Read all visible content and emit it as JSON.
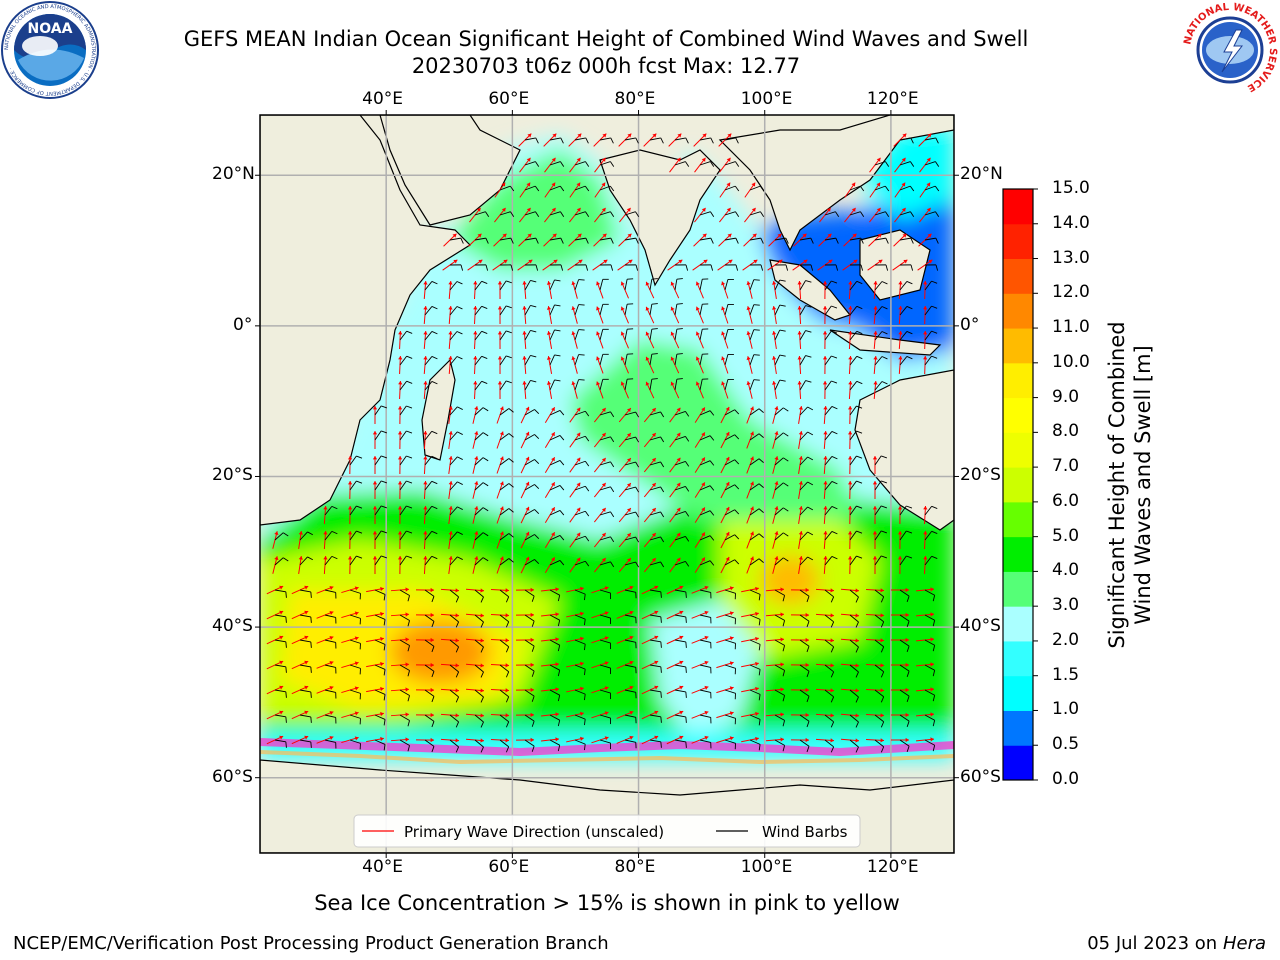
{
  "title": {
    "line1": "GEFS MEAN Indian Ocean Significant Height of Combined Wind Waves and Swell",
    "line2": "20230703 t06z 000h fcst   Max: 12.77"
  },
  "logos": {
    "noaa_text": "NOAA",
    "noaa_ring": "NATIONAL OCEANIC AND ATMOSPHERIC ADMINISTRATION · U.S. DEPARTMENT OF COMMERCE ·",
    "nws_ring": "NATIONAL WEATHER SERVICE"
  },
  "map": {
    "projection": "equidistant-cylindrical",
    "lon_range": [
      20,
      130
    ],
    "lat_range": [
      -70,
      28
    ],
    "lon_ticks": [
      {
        "value": 40,
        "label": "40°E"
      },
      {
        "value": 60,
        "label": "60°E"
      },
      {
        "value": 80,
        "label": "80°E"
      },
      {
        "value": 100,
        "label": "100°E"
      },
      {
        "value": 120,
        "label": "120°E"
      }
    ],
    "lat_ticks": [
      {
        "value": 20,
        "label": "20°N"
      },
      {
        "value": 0,
        "label": "0°"
      },
      {
        "value": -20,
        "label": "20°S"
      },
      {
        "value": -40,
        "label": "40°S"
      },
      {
        "value": -60,
        "label": "60°S"
      }
    ],
    "grid": true,
    "land_color": "#efeedd",
    "ocean_default_color": "#aaffff",
    "legend": {
      "placement": "bottom-center",
      "items": [
        {
          "label": "Primary Wave Direction (unscaled)",
          "color": "#ff0000"
        },
        {
          "label": "Wind Barbs",
          "color": "#000000"
        }
      ]
    }
  },
  "colorbar": {
    "title_line1": "Significant Height of Combined",
    "title_line2": "Wind Waves and Swell [m]",
    "levels": [
      {
        "value": "0.0",
        "color": "#0000ff"
      },
      {
        "value": "0.5",
        "color": "#0077ff"
      },
      {
        "value": "1.0",
        "color": "#00ffff"
      },
      {
        "value": "1.5",
        "color": "#33ffff"
      },
      {
        "value": "2.0",
        "color": "#aaffff"
      },
      {
        "value": "3.0",
        "color": "#55ff77"
      },
      {
        "value": "4.0",
        "color": "#00ee00"
      },
      {
        "value": "5.0",
        "color": "#66ff00"
      },
      {
        "value": "6.0",
        "color": "#ccff00"
      },
      {
        "value": "7.0",
        "color": "#eeff00"
      },
      {
        "value": "8.0",
        "color": "#ffff00"
      },
      {
        "value": "9.0",
        "color": "#ffee00"
      },
      {
        "value": "10.0",
        "color": "#ffbb00"
      },
      {
        "value": "11.0",
        "color": "#ff8800"
      },
      {
        "value": "12.0",
        "color": "#ff5500"
      },
      {
        "value": "13.0",
        "color": "#ff2200"
      },
      {
        "value": "14.0",
        "color": "#ff0000"
      },
      {
        "value": "15.0",
        "color": ""
      }
    ]
  },
  "caption": "Sea Ice Concentration > 15% is shown in pink to yellow",
  "footer": {
    "left": "NCEP/EMC/Verification Post Processing Product Generation Branch",
    "right_date": "05 Jul 2023 on",
    "right_host": "Hera"
  }
}
